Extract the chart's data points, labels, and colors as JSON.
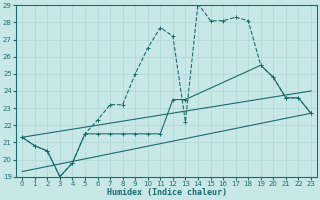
{
  "title": "",
  "xlabel": "Humidex (Indice chaleur)",
  "xlim": [
    -0.5,
    23.5
  ],
  "ylim": [
    19,
    29
  ],
  "yticks": [
    19,
    20,
    21,
    22,
    23,
    24,
    25,
    26,
    27,
    28,
    29
  ],
  "xticks": [
    0,
    1,
    2,
    3,
    4,
    5,
    6,
    7,
    8,
    9,
    10,
    11,
    12,
    13,
    14,
    15,
    16,
    17,
    18,
    19,
    20,
    21,
    22,
    23
  ],
  "bg_color": "#c8e8e8",
  "line_color": "#1a6b6b",
  "grid_color": "#b0d4d4",
  "line1_x": [
    0,
    1,
    2,
    3,
    4,
    5,
    6,
    7,
    8,
    9,
    10,
    11,
    12,
    13,
    14,
    15,
    16,
    17,
    18,
    19,
    20,
    21,
    22,
    23
  ],
  "line1_y": [
    21.3,
    20.8,
    20.5,
    19.0,
    19.8,
    21.5,
    22.3,
    23.2,
    23.2,
    25.0,
    26.5,
    27.7,
    27.2,
    22.2,
    29.1,
    28.1,
    28.1,
    28.3,
    28.1,
    25.5,
    24.8,
    23.6,
    23.6,
    22.7
  ],
  "line2_x": [
    0,
    1,
    2,
    3,
    4,
    5,
    6,
    7,
    8,
    9,
    10,
    11,
    12,
    13,
    19,
    20,
    21,
    22,
    23
  ],
  "line2_y": [
    21.3,
    20.8,
    20.5,
    19.0,
    19.8,
    21.5,
    21.5,
    21.5,
    21.5,
    21.5,
    21.5,
    21.5,
    23.5,
    23.5,
    25.5,
    24.8,
    23.6,
    23.6,
    22.7
  ],
  "line3_x": [
    0,
    23
  ],
  "line3_y": [
    19.3,
    22.7
  ],
  "line4_x": [
    0,
    23
  ],
  "line4_y": [
    21.3,
    24.0
  ]
}
